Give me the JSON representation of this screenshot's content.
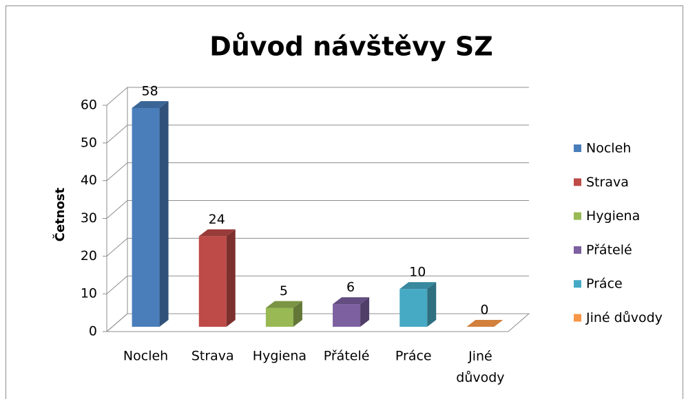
{
  "chart_data": {
    "type": "bar3d",
    "title": "Důvod návštěvy SZ",
    "y_label": "Četnost",
    "categories": [
      "Nocleh",
      "Strava",
      "Hygiena",
      "Přátelé",
      "Práce",
      "Jiné důvody"
    ],
    "values": [
      58,
      24,
      5,
      6,
      10,
      0
    ],
    "colors": [
      "#4a7ebb",
      "#be4b48",
      "#98b954",
      "#7d60a0",
      "#46aac5",
      "#f79646"
    ],
    "ylim": [
      0,
      60
    ],
    "yticks": [
      0,
      10,
      20,
      30,
      40,
      50,
      60
    ],
    "grid": true,
    "legend": "right"
  }
}
